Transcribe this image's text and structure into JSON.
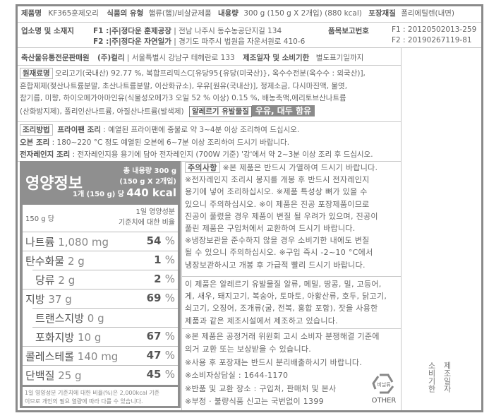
{
  "product": {
    "name_label": "제품명",
    "name": "KF365훈제오리",
    "type_label": "식품의 유형",
    "type": "햄류(햄)/비살균제품",
    "amount_label": "내용량",
    "amount": "300 g (150 g X 2개입) (880 kcal)",
    "pack_label": "포장재질",
    "pack": "폴리에틸렌(내면)"
  },
  "maker": {
    "label": "업소명 및 소재지",
    "f1_tag": "F1 :",
    "f1_name": "|주|정다운 훈제공장",
    "f1_addr": "| 전남 나주시 동수농공단지길 134",
    "f2_tag": "F2 :",
    "f2_name": "|주|정다운 자연일가",
    "f2_addr": "| 경기도 파주시 법원읍 자운서원로 410-6",
    "report_label": "품목보고번호",
    "report_f1": "F1 : 20120502013-259",
    "report_f2": "F2 : 20190267119-81"
  },
  "seller": {
    "label": "축산물유통전문판매원",
    "name": "(주)컬리",
    "addr": "| 서울특별시 강남구 테헤란로 133",
    "date_label": "제조일자 및 소비기한",
    "date_value": "별도표기일까지"
  },
  "ingredients": {
    "label": "원재료명",
    "lines": [
      "오리고기(국내산) 92.77 %, 복합프리믹스C[유당95{유당(미국산)}, 옥수수전분(옥수수 : 외국산)],",
      "혼합제제(젖산나트륨분말, 초산나트륨분말, 이산화규소), 우유[원유(국내산)], 정제소금, 다시마진액, 물엿,",
      "참기름, 미향, 하이오메가아마인유(식물성오메가3 오일 52 % 이상) 0.15 %, 배농축액,에리토브산나트륨",
      "(산화방지제), 폴리인산나트륨, 아질산나트륨(발색제)"
    ],
    "allergy_label": "알레르기 유발물질",
    "allergy_value": "우유, 대두 함유"
  },
  "cooking": {
    "label": "조리방법",
    "pan_label": "프라이팬 조리",
    "pan": " : 예열된 프라이팬에 중불로 약 3~4분 이상 조리하여 드십시오.",
    "oven_label": "오븐 조리",
    "oven": " : 180~220 °C 정도 예열된 오븐에 6~7분 이상 조리하여 드시기 바랍니다.",
    "micro_label": "전자레인지 조리",
    "micro": " : 전자레인지용 용기에 담아 전자레인지 (700W 기준) '강'에서 약 2~3분 이상 조리 후 드십시오."
  },
  "nutrition": {
    "title": "영양정보",
    "total": "총 내용량 300 g",
    "total_sub": "(150 g X 2개입)",
    "per_prefix": "1개 (150 g) 당",
    "kcal": "440 kcal",
    "per_label": "150 g 당",
    "ratio_label_1": "1일 영양성분",
    "ratio_label_2": "기준치에 대한 비율",
    "rows": [
      {
        "name": "나트륨",
        "amount": "1,080 mg",
        "pct": "54",
        "indent": false
      },
      {
        "name": "탄수화물",
        "amount": "2 g",
        "pct": "1",
        "indent": false
      },
      {
        "name": "당류",
        "amount": "2 g",
        "pct": "2",
        "indent": true
      },
      {
        "name": "지방",
        "amount": "37 g",
        "pct": "69",
        "indent": false
      },
      {
        "name": "트랜스지방",
        "amount": "0 g",
        "pct": "",
        "indent": true
      },
      {
        "name": "포화지방",
        "amount": "10 g",
        "pct": "67",
        "indent": true
      },
      {
        "name": "콜레스테롤",
        "amount": "140 mg",
        "pct": "47",
        "indent": false
      },
      {
        "name": "단백질",
        "amount": "25 g",
        "pct": "45",
        "indent": false
      }
    ],
    "footnote_1": "1일 영양성분 기준치에 대한 비율(%)은 2,000kcal 기준",
    "footnote_2": "이므로 개인의 필요 열량에 따라 다를 수 있습니다."
  },
  "caution": {
    "label": "주의사항",
    "first": " ※본 제품은 반드시 가열하여 드시기 바랍니다.",
    "lines": [
      "※전자레인지 조리시 봉지를 개봉 후 반드시 전자레인지",
      "용기에 넣어 조리하십시오.  ※제품 특성상 뼈가 있을 수",
      "있으니 주의하십시오.  ※이 제품은 진공 포장제품이므로",
      "진공이 풀렸을 경우 제품이 변질 될 우려가 있으며, 진공이",
      "풀린 제품은 구입처에서 교환하여 드시기 바랍니다.",
      "※냉장보관을 준수하지 않을 경우 소비기한 내에도 변질",
      "될 수 있으니 주의하십시오.  ※구입 즉시 -2~10 °C에서",
      "냉장보관하시고 개봉 후 가급적 빨리 드시기 바랍니다."
    ]
  },
  "allergen_notice": [
    "이 제품은 알레르기 유발물질 알류, 메밀, 땅콩, 밀, 고등어,",
    "게, 새우, 돼지고기, 복숭아, 토마토, 아황산류, 호두, 닭고기,",
    "쇠고기, 오징어, 조개류(굴, 전복, 홍합 포함), 잣을 사용한",
    "제품과 같은 제조시설에서 제조하고 있습니다."
  ],
  "notices": [
    "※본 제품은 공정거래 위원회 고시 소비자  분쟁해결 기준에",
    "의거 교환 또는 보상받을 수 있습니다.",
    "※사용 후 포장재는 반드시 분리배출하시기 바랍니다.",
    "※소비자상담실 : 1644-1170",
    "※반품 및 교환 장소 : 구입처, 판매처 및 본사",
    "※부정 · 불량식품 신고는 국번없이 1399"
  ],
  "recycle": {
    "icon": "recycle-icon",
    "material": "비닐류",
    "code": "OTHER"
  },
  "date_box": {
    "line1": "제조일자",
    "line2": "소비기한"
  }
}
